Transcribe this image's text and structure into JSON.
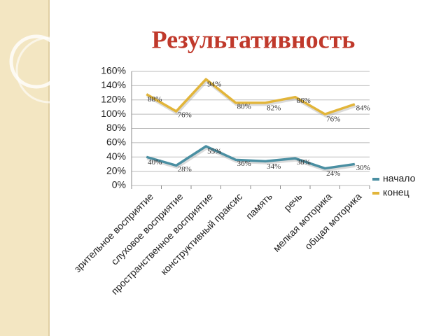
{
  "chart_data": {
    "type": "line",
    "stacked": true,
    "title": "Результативность",
    "categories": [
      "зрительное восприятие",
      "слуховое восприятие",
      "пространственное восприятие",
      "конструктивный праксис",
      "память",
      "речь",
      "мелкая моторика",
      "общая моторика"
    ],
    "series": [
      {
        "name": "начало",
        "color": "#4a8fa2",
        "values": [
          40,
          28,
          55,
          36,
          34,
          38,
          24,
          30
        ],
        "value_labels": [
          "40%",
          "28%",
          "55%",
          "36%",
          "34%",
          "38%",
          "24%",
          "30%"
        ]
      },
      {
        "name": "конец",
        "color": "#e2b53a",
        "values": [
          88,
          76,
          94,
          80,
          82,
          86,
          76,
          84
        ],
        "value_labels": [
          "88%",
          "76%",
          "94%",
          "80%",
          "82%",
          "86%",
          "76%",
          "84%"
        ]
      }
    ],
    "ylim": [
      0,
      160
    ],
    "yticks": [
      {
        "value": 0,
        "label": "0%"
      },
      {
        "value": 20,
        "label": "20%"
      },
      {
        "value": 40,
        "label": "40%"
      },
      {
        "value": 60,
        "label": "60%"
      },
      {
        "value": 80,
        "label": "80%"
      },
      {
        "value": 100,
        "label": "100%"
      },
      {
        "value": 120,
        "label": "120%"
      },
      {
        "value": 140,
        "label": "140%"
      },
      {
        "value": 160,
        "label": "160%"
      }
    ],
    "grid": true,
    "legend": "right"
  }
}
